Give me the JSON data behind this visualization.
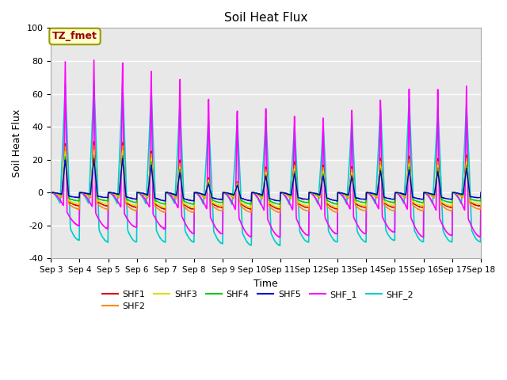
{
  "title": "Soil Heat Flux",
  "xlabel": "Time",
  "ylabel": "Soil Heat Flux",
  "ylim": [
    -40,
    100
  ],
  "xlim_days": [
    3,
    18
  ],
  "background_color": "#ffffff",
  "plot_bg_color": "#e8e8e8",
  "annotation_text": "TZ_fmet",
  "annotation_bg": "#ffffcc",
  "annotation_border": "#999900",
  "annotation_text_color": "#990000",
  "series_order": [
    "SHF_2",
    "SHF_1",
    "SHF1",
    "SHF2",
    "SHF3",
    "SHF4",
    "SHF5"
  ],
  "series": {
    "SHF1": {
      "color": "#dd0000",
      "lw": 1.0
    },
    "SHF2": {
      "color": "#ff8800",
      "lw": 1.0
    },
    "SHF3": {
      "color": "#dddd00",
      "lw": 1.0
    },
    "SHF4": {
      "color": "#00cc00",
      "lw": 1.0
    },
    "SHF5": {
      "color": "#0000cc",
      "lw": 1.0
    },
    "SHF_1": {
      "color": "#ff00ff",
      "lw": 1.2
    },
    "SHF_2": {
      "color": "#00cccc",
      "lw": 1.2
    }
  },
  "legend_order": [
    "SHF1",
    "SHF2",
    "SHF3",
    "SHF4",
    "SHF5",
    "SHF_1",
    "SHF_2"
  ],
  "xtick_labels": [
    "Sep 3",
    "Sep 4",
    "Sep 5",
    "Sep 6",
    "Sep 7",
    "Sep 8",
    "Sep 9",
    "Sep 10",
    "Sep 11",
    "Sep 12",
    "Sep 13",
    "Sep 14",
    "Sep 15",
    "Sep 16",
    "Sep 17",
    "Sep 18"
  ],
  "ytick_labels": [
    -40,
    -20,
    0,
    20,
    40,
    60,
    80,
    100
  ]
}
